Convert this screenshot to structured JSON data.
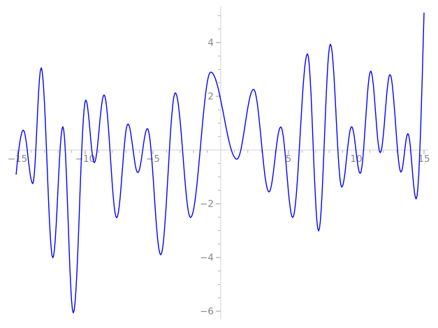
{
  "chart_data": {
    "type": "line",
    "title": "",
    "xlabel": "",
    "ylabel": "",
    "xlim": [
      -15.55,
      15.3
    ],
    "ylim": [
      -6.3,
      5.35
    ],
    "grid": false,
    "legend": "none",
    "line_color": "#0000ff",
    "line_width": 1.4,
    "x_major_ticks": [
      -15,
      -10,
      -5,
      5,
      10,
      15
    ],
    "x_major_labels": [
      "−15",
      "−10",
      "−5",
      "5",
      "10",
      "15"
    ],
    "x_minor_ticks": [
      -14,
      -13,
      -12,
      -11,
      -9,
      -8,
      -7,
      -6,
      -4,
      -3,
      -2,
      -1,
      1,
      2,
      3,
      4,
      6,
      7,
      8,
      9,
      11,
      12,
      13,
      14
    ],
    "y_major_ticks": [
      4,
      2,
      -2,
      -4,
      -6
    ],
    "y_major_labels": [
      "4",
      "2",
      "−2",
      "−4",
      "−6"
    ],
    "y_minor_ticks": [
      5,
      4.5,
      3.5,
      3,
      2.5,
      1.5,
      1,
      0.5,
      -0.5,
      -1,
      -1.5,
      -2.5,
      -3,
      -3.5,
      -4.5,
      -5,
      -5.5
    ],
    "interpolation": "half-cosine between successive extrema",
    "points": [
      [
        -15.1,
        -0.9
      ],
      [
        -14.57,
        0.74
      ],
      [
        -13.87,
        -1.25
      ],
      [
        -13.25,
        3.06
      ],
      [
        -12.39,
        -4.01
      ],
      [
        -11.65,
        0.87
      ],
      [
        -10.88,
        -6.06
      ],
      [
        -9.96,
        1.86
      ],
      [
        -9.33,
        -0.47
      ],
      [
        -8.61,
        2.05
      ],
      [
        -7.68,
        -2.52
      ],
      [
        -6.85,
        0.97
      ],
      [
        -6.12,
        -0.84
      ],
      [
        -5.41,
        0.8
      ],
      [
        -4.43,
        -3.9
      ],
      [
        -3.35,
        2.13
      ],
      [
        -2.23,
        -2.51
      ],
      [
        -0.74,
        2.9
      ],
      [
        1.19,
        -0.34
      ],
      [
        2.42,
        2.26
      ],
      [
        3.56,
        -1.56
      ],
      [
        4.43,
        0.86
      ],
      [
        5.31,
        -2.51
      ],
      [
        6.4,
        3.58
      ],
      [
        7.22,
        -3.01
      ],
      [
        8.09,
        3.94
      ],
      [
        8.93,
        -1.38
      ],
      [
        9.66,
        0.87
      ],
      [
        10.29,
        -0.87
      ],
      [
        11.07,
        2.94
      ],
      [
        11.77,
        -0.1
      ],
      [
        12.49,
        2.81
      ],
      [
        13.3,
        -0.82
      ],
      [
        13.81,
        0.61
      ],
      [
        14.42,
        -1.82
      ],
      [
        15.0,
        5.1
      ]
    ]
  },
  "axis_style": {
    "axis_line_color": "#d2d2d2",
    "minor_tick_color": "#b3b3b3",
    "major_tick_color": "#9a9a9a",
    "tick_label_color": "#878787"
  }
}
